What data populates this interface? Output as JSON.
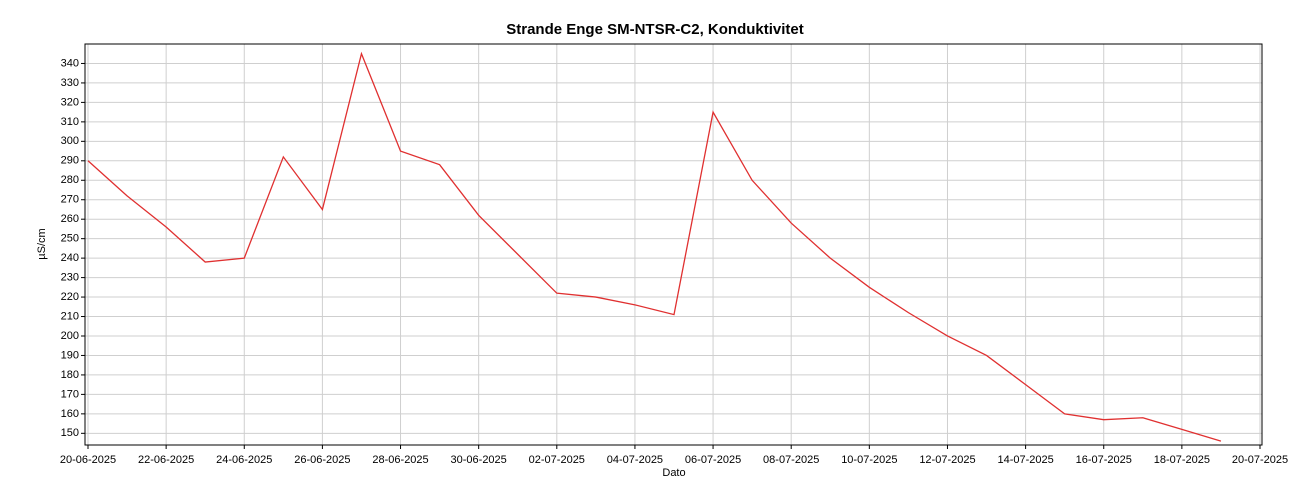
{
  "chart_data": {
    "type": "line",
    "title": "Strande Enge SM-NTSR-C2, Konduktivitet",
    "xlabel": "Dato",
    "ylabel": "µS/cm",
    "x": [
      "20-06-2025",
      "21-06-2025",
      "22-06-2025",
      "23-06-2025",
      "24-06-2025",
      "25-06-2025",
      "26-06-2025",
      "27-06-2025",
      "28-06-2025",
      "29-06-2025",
      "30-06-2025",
      "01-07-2025",
      "02-07-2025",
      "03-07-2025",
      "04-07-2025",
      "05-07-2025",
      "06-07-2025",
      "07-07-2025",
      "08-07-2025",
      "09-07-2025",
      "10-07-2025",
      "11-07-2025",
      "12-07-2025",
      "13-07-2025",
      "14-07-2025",
      "15-07-2025",
      "16-07-2025",
      "17-07-2025",
      "18-07-2025",
      "19-07-2025"
    ],
    "series": [
      {
        "name": "Konduktivitet",
        "color": "#e03030",
        "values": [
          290,
          272,
          256,
          238,
          240,
          292,
          265,
          345,
          295,
          288,
          262,
          242,
          222,
          220,
          216,
          211,
          315,
          280,
          258,
          240,
          225,
          212,
          200,
          190,
          175,
          160,
          157,
          158,
          152,
          146
        ]
      }
    ],
    "xlim": [
      "20-06-2025",
      "20-07-2025"
    ],
    "xticks": [
      "20-06-2025",
      "22-06-2025",
      "24-06-2025",
      "26-06-2025",
      "28-06-2025",
      "30-06-2025",
      "02-07-2025",
      "04-07-2025",
      "06-07-2025",
      "08-07-2025",
      "10-07-2025",
      "12-07-2025",
      "14-07-2025",
      "16-07-2025",
      "18-07-2025",
      "20-07-2025"
    ],
    "ylim": [
      144,
      350
    ],
    "yticks": [
      150,
      160,
      170,
      180,
      190,
      200,
      210,
      220,
      230,
      240,
      250,
      260,
      270,
      280,
      290,
      300,
      310,
      320,
      330,
      340
    ],
    "grid": true
  }
}
